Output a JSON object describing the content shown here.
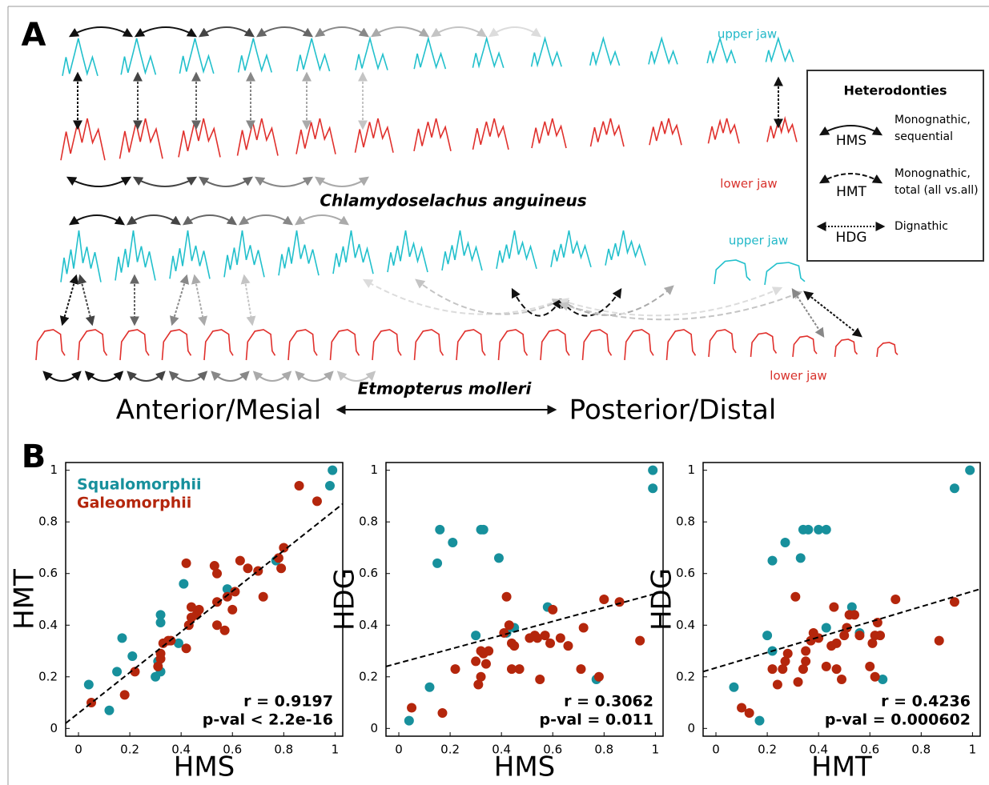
{
  "panel_a": {
    "label": "A",
    "upper_jaw_1": "upper jaw",
    "lower_jaw_1": "lower jaw",
    "species_1": "Chlamydoselachus anguineus",
    "upper_jaw_2": "upper jaw",
    "lower_jaw_2": "lower jaw",
    "species_2": "Etmopterus molleri",
    "anterior": "Anterior/Mesial",
    "posterior": "Posterior/Distal",
    "legend": {
      "title": "Heterodonties",
      "hms": "HMS",
      "hms_desc_1": "Monognathic,",
      "hms_desc_2": "sequential",
      "hmt": "HMT",
      "hmt_desc_1": "Monognathic,",
      "hmt_desc_2": "total (all vs.all)",
      "hdg": "HDG",
      "hdg_desc": "Dignathic"
    }
  },
  "panel_b_label": "B",
  "chart_data": [
    {
      "type": "scatter",
      "xlabel": "HMS",
      "ylabel": "HMT",
      "xlim": [
        -0.05,
        1.03
      ],
      "ylim": [
        -0.03,
        1.03
      ],
      "xticks": [
        0,
        0.2,
        0.4,
        0.6,
        0.8,
        1
      ],
      "yticks": [
        0,
        0.2,
        0.4,
        0.6,
        0.8,
        1
      ],
      "legend": true,
      "series": [
        {
          "name": "Squalomorphii",
          "color": "#17909c",
          "x": [
            0.04,
            0.12,
            0.15,
            0.17,
            0.21,
            0.3,
            0.32,
            0.32,
            0.32,
            0.31,
            0.39,
            0.41,
            0.58,
            0.77,
            0.99,
            0.98
          ],
          "values": [
            0.17,
            0.07,
            0.22,
            0.35,
            0.28,
            0.2,
            0.22,
            0.44,
            0.41,
            0.26,
            0.33,
            0.56,
            0.54,
            0.65,
            1.0,
            0.94
          ]
        },
        {
          "name": "Galeomorphii",
          "color": "#b4260c",
          "x": [
            0.05,
            0.18,
            0.22,
            0.31,
            0.32,
            0.32,
            0.33,
            0.35,
            0.36,
            0.42,
            0.42,
            0.43,
            0.44,
            0.44,
            0.46,
            0.47,
            0.53,
            0.54,
            0.54,
            0.54,
            0.57,
            0.58,
            0.6,
            0.61,
            0.63,
            0.66,
            0.7,
            0.72,
            0.78,
            0.79,
            0.8,
            0.86,
            0.93
          ],
          "values": [
            0.1,
            0.13,
            0.22,
            0.24,
            0.27,
            0.29,
            0.33,
            0.34,
            0.34,
            0.31,
            0.64,
            0.4,
            0.43,
            0.47,
            0.44,
            0.46,
            0.63,
            0.6,
            0.4,
            0.49,
            0.38,
            0.51,
            0.46,
            0.53,
            0.65,
            0.62,
            0.61,
            0.51,
            0.66,
            0.62,
            0.7,
            0.94,
            0.88
          ]
        }
      ],
      "trend_line": {
        "x": [
          -0.05,
          1.03
        ],
        "y": [
          0.02,
          0.87
        ]
      },
      "annotations": [
        "r = 0.9197",
        "p-val < 2.2e-16"
      ]
    },
    {
      "type": "scatter",
      "xlabel": "HMS",
      "ylabel": "HDG",
      "xlim": [
        -0.05,
        1.03
      ],
      "ylim": [
        -0.03,
        1.03
      ],
      "xticks": [
        0,
        0.2,
        0.4,
        0.6,
        0.8,
        1
      ],
      "yticks": [
        0,
        0.2,
        0.4,
        0.6,
        0.8,
        1
      ],
      "legend": false,
      "series": [
        {
          "color": "#17909c",
          "x": [
            0.04,
            0.12,
            0.15,
            0.16,
            0.21,
            0.32,
            0.33,
            0.3,
            0.39,
            0.42,
            0.45,
            0.58,
            0.77,
            0.99,
            0.99
          ],
          "values": [
            0.03,
            0.16,
            0.64,
            0.77,
            0.72,
            0.77,
            0.77,
            0.36,
            0.66,
            0.37,
            0.39,
            0.47,
            0.19,
            1.0,
            0.93
          ]
        },
        {
          "color": "#b4260c",
          "x": [
            0.05,
            0.17,
            0.22,
            0.3,
            0.31,
            0.32,
            0.32,
            0.33,
            0.34,
            0.35,
            0.41,
            0.42,
            0.43,
            0.44,
            0.44,
            0.45,
            0.47,
            0.51,
            0.53,
            0.54,
            0.55,
            0.57,
            0.59,
            0.6,
            0.63,
            0.66,
            0.71,
            0.72,
            0.78,
            0.8,
            0.86,
            0.94
          ],
          "values": [
            0.08,
            0.06,
            0.23,
            0.26,
            0.17,
            0.3,
            0.2,
            0.29,
            0.25,
            0.3,
            0.37,
            0.51,
            0.4,
            0.33,
            0.23,
            0.32,
            0.23,
            0.35,
            0.36,
            0.35,
            0.19,
            0.36,
            0.33,
            0.46,
            0.35,
            0.32,
            0.23,
            0.39,
            0.2,
            0.5,
            0.49,
            0.34
          ]
        }
      ],
      "trend_line": {
        "x": [
          -0.05,
          1.03
        ],
        "y": [
          0.24,
          0.53
        ]
      },
      "annotations": [
        "r = 0.3062",
        "p-val = 0.011"
      ]
    },
    {
      "type": "scatter",
      "xlabel": "HMT",
      "ylabel": "HDG",
      "xlim": [
        -0.05,
        1.03
      ],
      "ylim": [
        -0.03,
        1.03
      ],
      "xticks": [
        0,
        0.2,
        0.4,
        0.6,
        0.8,
        1
      ],
      "yticks": [
        0,
        0.2,
        0.4,
        0.6,
        0.8,
        1
      ],
      "legend": false,
      "series": [
        {
          "color": "#17909c",
          "x": [
            0.07,
            0.17,
            0.2,
            0.22,
            0.22,
            0.27,
            0.33,
            0.34,
            0.36,
            0.4,
            0.43,
            0.43,
            0.53,
            0.56,
            0.65,
            0.93,
            0.99
          ],
          "values": [
            0.16,
            0.03,
            0.36,
            0.3,
            0.65,
            0.72,
            0.66,
            0.77,
            0.77,
            0.77,
            0.77,
            0.39,
            0.47,
            0.37,
            0.19,
            0.93,
            1.0
          ]
        },
        {
          "color": "#b4260c",
          "x": [
            0.1,
            0.13,
            0.22,
            0.24,
            0.26,
            0.27,
            0.28,
            0.31,
            0.32,
            0.34,
            0.35,
            0.35,
            0.37,
            0.38,
            0.4,
            0.43,
            0.45,
            0.46,
            0.47,
            0.47,
            0.49,
            0.5,
            0.51,
            0.52,
            0.54,
            0.56,
            0.6,
            0.61,
            0.62,
            0.62,
            0.63,
            0.64,
            0.7,
            0.87,
            0.93
          ],
          "values": [
            0.08,
            0.06,
            0.23,
            0.17,
            0.23,
            0.26,
            0.29,
            0.51,
            0.18,
            0.23,
            0.26,
            0.3,
            0.34,
            0.37,
            0.35,
            0.24,
            0.32,
            0.47,
            0.23,
            0.33,
            0.19,
            0.36,
            0.39,
            0.44,
            0.44,
            0.36,
            0.24,
            0.33,
            0.2,
            0.36,
            0.41,
            0.36,
            0.5,
            0.34,
            0.49
          ]
        }
      ],
      "trend_line": {
        "x": [
          -0.05,
          1.03
        ],
        "y": [
          0.22,
          0.54
        ]
      },
      "annotations": [
        "r = 0.4236",
        "p-val = 0.000602"
      ]
    }
  ]
}
